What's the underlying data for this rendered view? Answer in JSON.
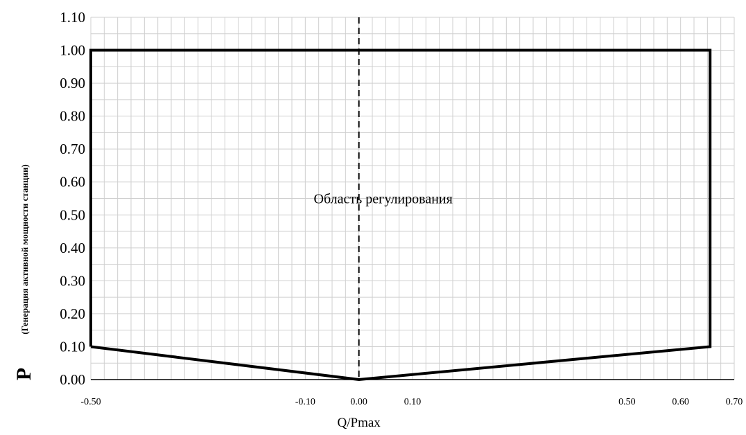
{
  "chart_data": {
    "type": "line",
    "title": "",
    "xlabel": "Q/Pmax",
    "ylabel": {
      "main": "P",
      "sub": "(Генерация активной мощности станции)"
    },
    "xlim": [
      -0.5,
      0.7
    ],
    "ylim": [
      0.0,
      1.1
    ],
    "x_ticks": [
      "-0.50",
      "-0.10",
      "0.00",
      "0.10",
      "0.50",
      "0.60",
      "0.70"
    ],
    "y_ticks": [
      "0.00",
      "0.10",
      "0.20",
      "0.30",
      "0.40",
      "0.50",
      "0.60",
      "0.70",
      "0.80",
      "0.90",
      "1.00",
      "1.10"
    ],
    "grid": true,
    "series": [
      {
        "points": [
          {
            "x": -0.5,
            "y": 0.1
          },
          {
            "x": -0.5,
            "y": 1.0
          },
          {
            "x": 0.655,
            "y": 1.0
          },
          {
            "x": 0.655,
            "y": 0.1
          },
          {
            "x": 0.0,
            "y": 0.0
          },
          {
            "x": -0.5,
            "y": 0.1
          }
        ]
      }
    ],
    "reference_line": {
      "x": 0.0,
      "style": "dashed"
    },
    "annotations": [
      {
        "text": "Область регулирования",
        "x": 0.0,
        "y": 0.55
      }
    ]
  }
}
